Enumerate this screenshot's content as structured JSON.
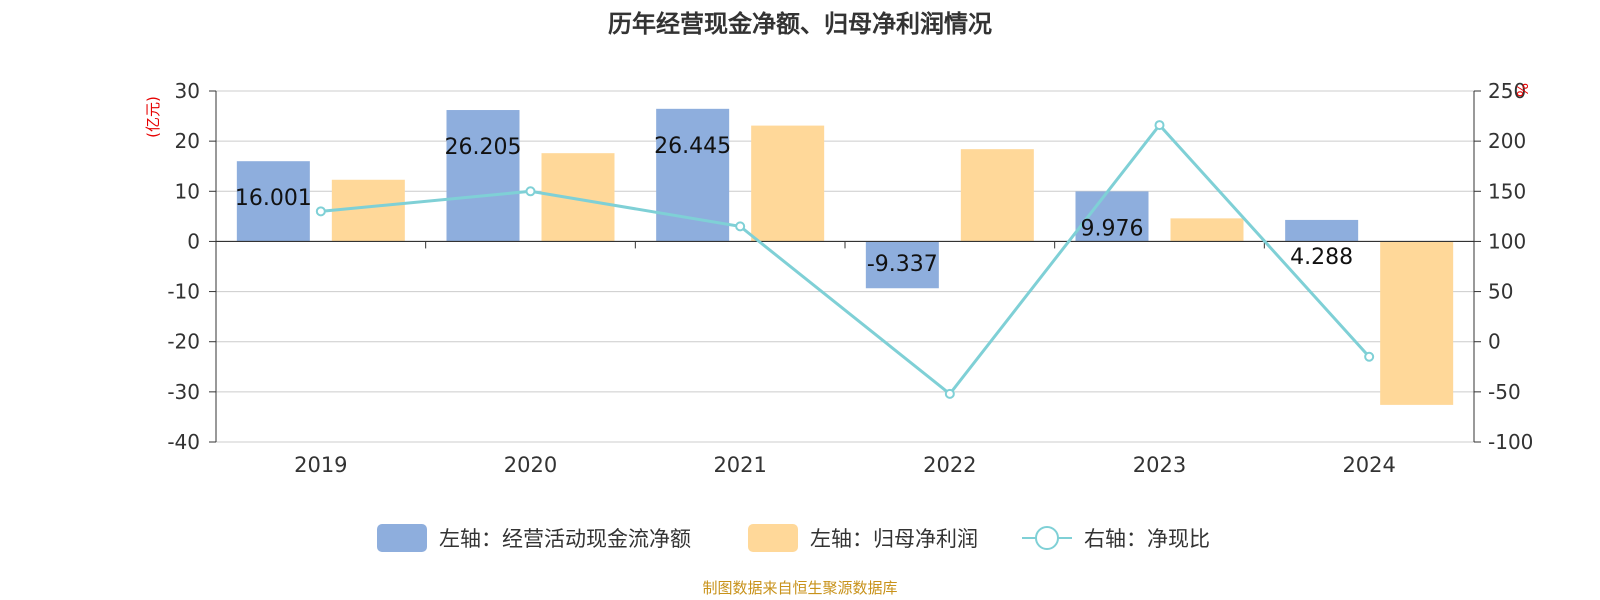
{
  "chart_data": {
    "type": "bar",
    "title": "历年经营现金净额、归母净利润情况",
    "categories": [
      "2019",
      "2020",
      "2021",
      "2022",
      "2023",
      "2024"
    ],
    "left_axis": {
      "unit": "(亿元)",
      "ylim": [
        -40,
        30
      ],
      "ticks": [
        "30",
        "20",
        "10",
        "0",
        "-10",
        "-20",
        "-30",
        "-40"
      ]
    },
    "right_axis": {
      "unit": "%",
      "ylim": [
        -100,
        250
      ],
      "ticks": [
        "250",
        "200",
        "150",
        "100",
        "50",
        "0",
        "-50",
        "-100"
      ]
    },
    "series": [
      {
        "name": "左轴：经营活动现金流净额",
        "type": "bar",
        "axis": "left",
        "color": "#8eaedd",
        "values": [
          16.001,
          26.205,
          26.445,
          -9.337,
          9.976,
          4.288
        ],
        "labels": [
          "16.001",
          "26.205",
          "26.445",
          "-9.337",
          "9.976",
          "4.288"
        ]
      },
      {
        "name": "左轴：归母净利润",
        "type": "bar",
        "axis": "left",
        "color": "#ffd899",
        "values": [
          12.3,
          17.6,
          23.1,
          18.4,
          4.6,
          -32.6
        ]
      },
      {
        "name": "右轴：净现比",
        "type": "line",
        "axis": "right",
        "color": "#7fd0d6",
        "values": [
          130,
          150,
          115,
          -52,
          216,
          -15
        ]
      }
    ],
    "grid": true,
    "legend": "bottom",
    "source": "制图数据来自恒生聚源数据库"
  }
}
